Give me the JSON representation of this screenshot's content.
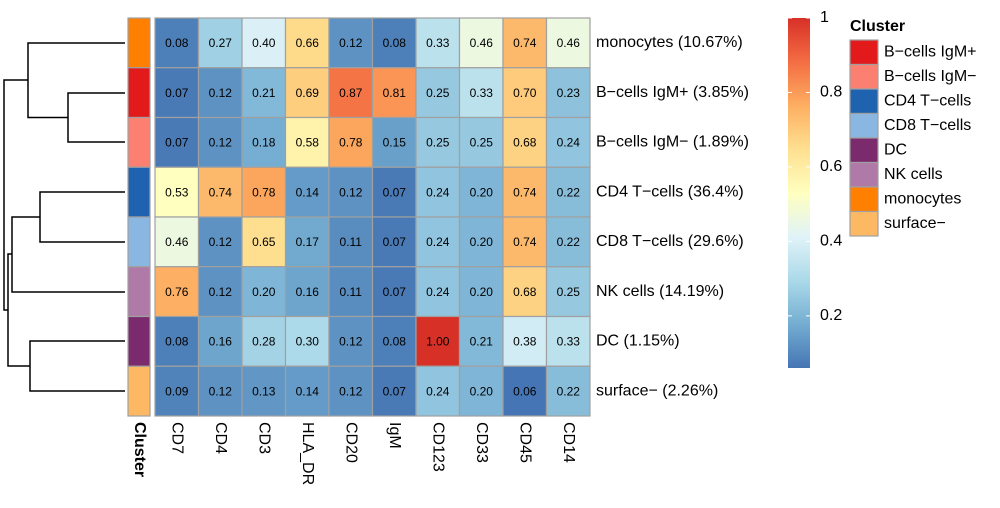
{
  "chart_data": {
    "type": "heatmap",
    "rows": [
      "monocytes (10.67%)",
      "B−cells IgM+ (3.85%)",
      "B−cells IgM− (1.89%)",
      "CD4 T−cells (36.4%)",
      "CD8 T−cells (29.6%)",
      "NK cells (14.19%)",
      "DC (1.15%)",
      "surface− (2.26%)"
    ],
    "columns": [
      "CD7",
      "CD4",
      "CD3",
      "HLA_DR",
      "CD20",
      "IgM",
      "CD123",
      "CD33",
      "CD45",
      "CD14"
    ],
    "values": [
      [
        0.08,
        0.27,
        0.4,
        0.66,
        0.12,
        0.08,
        0.33,
        0.46,
        0.74,
        0.46
      ],
      [
        0.07,
        0.12,
        0.21,
        0.69,
        0.87,
        0.81,
        0.25,
        0.33,
        0.7,
        0.23
      ],
      [
        0.07,
        0.12,
        0.18,
        0.58,
        0.78,
        0.15,
        0.25,
        0.25,
        0.68,
        0.24
      ],
      [
        0.53,
        0.74,
        0.78,
        0.14,
        0.12,
        0.07,
        0.24,
        0.2,
        0.74,
        0.22
      ],
      [
        0.46,
        0.12,
        0.65,
        0.17,
        0.11,
        0.07,
        0.24,
        0.2,
        0.74,
        0.22
      ],
      [
        0.76,
        0.12,
        0.2,
        0.16,
        0.11,
        0.07,
        0.24,
        0.2,
        0.68,
        0.25
      ],
      [
        0.08,
        0.16,
        0.28,
        0.3,
        0.12,
        0.08,
        1.0,
        0.21,
        0.38,
        0.33
      ],
      [
        0.09,
        0.12,
        0.13,
        0.14,
        0.12,
        0.07,
        0.24,
        0.2,
        0.06,
        0.22
      ]
    ],
    "value_labels": [
      [
        "0.08",
        "0.27",
        "0.40",
        "0.66",
        "0.12",
        "0.08",
        "0.33",
        "0.46",
        "0.74",
        "0.46"
      ],
      [
        "0.07",
        "0.12",
        "0.21",
        "0.69",
        "0.87",
        "0.81",
        "0.25",
        "0.33",
        "0.70",
        "0.23"
      ],
      [
        "0.07",
        "0.12",
        "0.18",
        "0.58",
        "0.78",
        "0.15",
        "0.25",
        "0.25",
        "0.68",
        "0.24"
      ],
      [
        "0.53",
        "0.74",
        "0.78",
        "0.14",
        "0.12",
        "0.07",
        "0.24",
        "0.20",
        "0.74",
        "0.22"
      ],
      [
        "0.46",
        "0.12",
        "0.65",
        "0.17",
        "0.11",
        "0.07",
        "0.24",
        "0.20",
        "0.74",
        "0.22"
      ],
      [
        "0.76",
        "0.12",
        "0.20",
        "0.16",
        "0.11",
        "0.07",
        "0.24",
        "0.20",
        "0.68",
        "0.25"
      ],
      [
        "0.08",
        "0.16",
        "0.28",
        "0.30",
        "0.12",
        "0.08",
        "1.00",
        "0.21",
        "0.38",
        "0.33"
      ],
      [
        "0.09",
        "0.12",
        "0.13",
        "0.14",
        "0.12",
        "0.07",
        "0.24",
        "0.20",
        "0.06",
        "0.22"
      ]
    ],
    "zlim": [
      0.06,
      1
    ],
    "zticks": [
      0.2,
      0.4,
      0.6,
      0.8,
      1
    ],
    "colorscale": [
      "#4575b4",
      "#74add1",
      "#abd9e9",
      "#e0f3f8",
      "#ffffbf",
      "#fee090",
      "#fdae61",
      "#f46d43",
      "#d73027"
    ],
    "annotation": {
      "label": "Cluster",
      "row_colors": [
        "#ff7f00",
        "#e31a1c",
        "#fb8072",
        "#1f63b0",
        "#8ab6e2",
        "#b07aa8",
        "#7b2a6e",
        "#fdb863"
      ]
    },
    "legend": {
      "title": "Cluster",
      "items": [
        {
          "name": "B−cells IgM+",
          "color": "#e31a1c"
        },
        {
          "name": "B−cells IgM−",
          "color": "#fb8072"
        },
        {
          "name": "CD4 T−cells",
          "color": "#1f63b0"
        },
        {
          "name": "CD8 T−cells",
          "color": "#8ab6e2"
        },
        {
          "name": "DC",
          "color": "#7b2a6e"
        },
        {
          "name": "NK cells",
          "color": "#b07aa8"
        },
        {
          "name": "monocytes",
          "color": "#ff7f00"
        },
        {
          "name": "surface−",
          "color": "#fdb863"
        }
      ]
    }
  }
}
